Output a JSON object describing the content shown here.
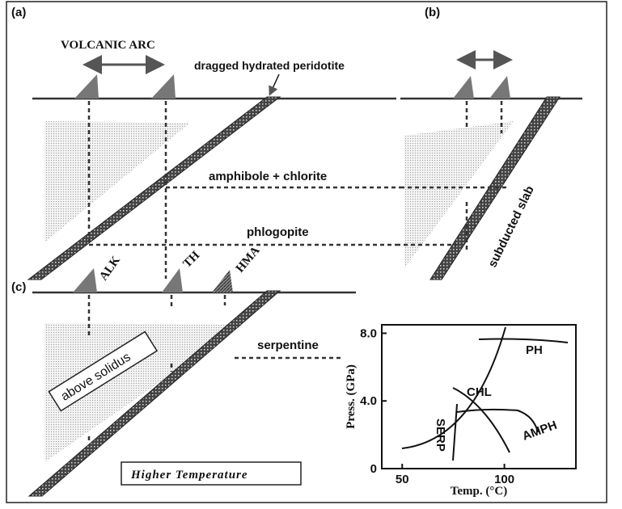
{
  "panels": {
    "a": {
      "label": "(a)",
      "arc": "VOLCANIC ARC",
      "peridotite": "dragged hydrated peridotite",
      "amphibole": "amphibole + chlorite",
      "phlogopite": "phlogopite"
    },
    "b": {
      "label": "(b)",
      "slab": "subducted slab"
    },
    "c": {
      "label": "(c)",
      "volcanoes": [
        "ALK",
        "TH",
        "HMA"
      ],
      "serpentine": "serpentine",
      "solidus": "above solidus",
      "note": "Higher Temperature"
    }
  },
  "inset": {
    "x_label": "Temp. (°C)",
    "y_label": "Press. (GPa)",
    "xlim": [
      40,
      135
    ],
    "ylim": [
      0,
      8.5
    ],
    "xticks": [
      50,
      100
    ],
    "yticks": [
      0,
      {
        "value": 4,
        "label": "4.0"
      },
      {
        "value": 8,
        "label": "8.0"
      }
    ],
    "curve_labels": [
      "PH",
      "CHL",
      "SERP",
      "AMPH"
    ]
  }
}
